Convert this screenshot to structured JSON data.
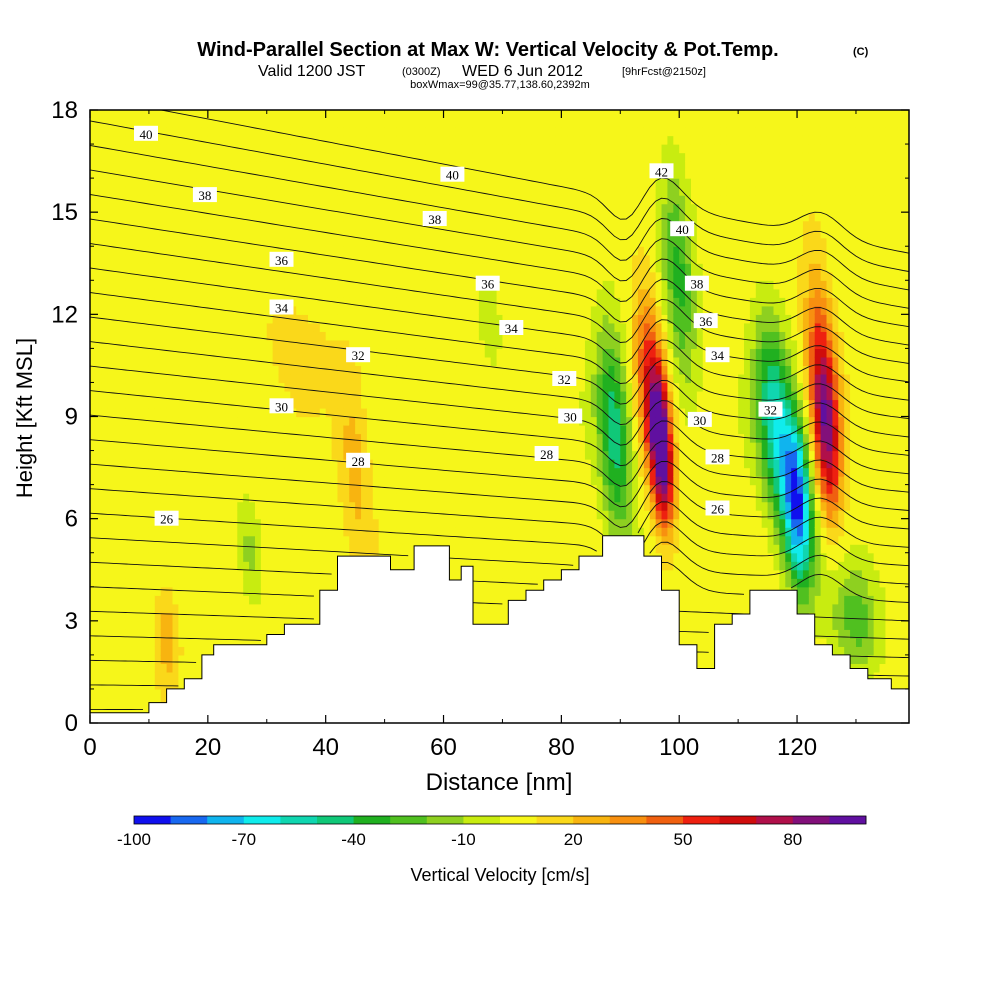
{
  "header": {
    "title": "Wind-Parallel Section at Max W: Vertical Velocity & Pot.Temp.",
    "title_mark": "(C)",
    "valid_prefix": "Valid 1200 JST",
    "valid_utc": "(0300Z)",
    "valid_date": "WED 6 Jun 2012",
    "forecast": "[9hrFcst@2150z]",
    "boxwmax": "boxWmax=99@35.77,138.60,2392m"
  },
  "chart_data": {
    "type": "heatmap",
    "xlabel": "Distance [nm]",
    "ylabel": "Height [Kft MSL]",
    "xlim": [
      0,
      139
    ],
    "ylim": [
      0,
      18
    ],
    "x_ticks": [
      "0",
      "20",
      "40",
      "60",
      "80",
      "100",
      "120"
    ],
    "y_ticks": [
      "0",
      "3",
      "6",
      "9",
      "12",
      "15",
      "18"
    ],
    "colorbar": {
      "label": "Vertical Velocity [cm/s]",
      "tick_labels": [
        "-100",
        "-70",
        "-40",
        "-10",
        "20",
        "50",
        "80"
      ],
      "colors": [
        "#1010ee",
        "#1868f0",
        "#10b4ee",
        "#10ecec",
        "#10d6b0",
        "#10c878",
        "#20b020",
        "#50c020",
        "#8ed020",
        "#c8ec10",
        "#f6f61a",
        "#fad81a",
        "#f8b410",
        "#f89010",
        "#f06010",
        "#ee2010",
        "#d00c0c",
        "#b0104a",
        "#82107a",
        "#6010a0"
      ],
      "min": -100,
      "max": 100
    },
    "terrain_profile": [
      [
        0,
        0.3
      ],
      [
        10,
        0.3
      ],
      [
        10,
        0.6
      ],
      [
        13,
        0.6
      ],
      [
        13,
        1.0
      ],
      [
        16,
        1.0
      ],
      [
        16,
        1.3
      ],
      [
        19,
        1.3
      ],
      [
        19,
        2.0
      ],
      [
        21,
        2.0
      ],
      [
        21,
        2.3
      ],
      [
        30,
        2.3
      ],
      [
        30,
        2.6
      ],
      [
        33,
        2.6
      ],
      [
        33,
        2.9
      ],
      [
        39,
        2.9
      ],
      [
        39,
        3.9
      ],
      [
        42,
        3.9
      ],
      [
        42,
        4.9
      ],
      [
        51,
        4.9
      ],
      [
        51,
        4.5
      ],
      [
        55,
        4.5
      ],
      [
        55,
        5.2
      ],
      [
        61,
        5.2
      ],
      [
        61,
        4.2
      ],
      [
        63,
        4.2
      ],
      [
        63,
        4.6
      ],
      [
        65,
        4.6
      ],
      [
        65,
        2.9
      ],
      [
        71,
        2.9
      ],
      [
        71,
        3.6
      ],
      [
        74,
        3.6
      ],
      [
        74,
        3.9
      ],
      [
        77,
        3.9
      ],
      [
        77,
        4.2
      ],
      [
        80,
        4.2
      ],
      [
        80,
        4.5
      ],
      [
        83,
        4.5
      ],
      [
        83,
        4.9
      ],
      [
        87,
        4.9
      ],
      [
        87,
        5.5
      ],
      [
        94,
        5.5
      ],
      [
        94,
        4.9
      ],
      [
        97,
        4.9
      ],
      [
        97,
        3.9
      ],
      [
        100,
        3.9
      ],
      [
        100,
        2.3
      ],
      [
        103,
        2.3
      ],
      [
        103,
        1.6
      ],
      [
        106,
        1.6
      ],
      [
        106,
        2.9
      ],
      [
        109,
        2.9
      ],
      [
        109,
        3.2
      ],
      [
        112,
        3.2
      ],
      [
        112,
        3.9
      ],
      [
        120,
        3.9
      ],
      [
        120,
        3.2
      ],
      [
        123,
        3.2
      ],
      [
        123,
        2.3
      ],
      [
        126,
        2.3
      ],
      [
        126,
        2.0
      ],
      [
        129,
        2.0
      ],
      [
        129,
        1.6
      ],
      [
        132,
        1.6
      ],
      [
        132,
        1.3
      ],
      [
        136,
        1.3
      ],
      [
        136,
        1.0
      ],
      [
        139,
        1.0
      ]
    ],
    "w_features": [
      {
        "x": 97,
        "z": 8.0,
        "rx": 1.8,
        "rz": 2.2,
        "w": 90
      },
      {
        "x": 95,
        "z": 10.0,
        "rx": 2.5,
        "rz": 3.0,
        "w": 45
      },
      {
        "x": 125,
        "z": 8.5,
        "rx": 2.2,
        "rz": 2.5,
        "w": 65
      },
      {
        "x": 124,
        "z": 11.0,
        "rx": 2.5,
        "rz": 3.0,
        "w": 35
      },
      {
        "x": 120,
        "z": 6.5,
        "rx": 2.5,
        "rz": 2.5,
        "w": -95
      },
      {
        "x": 116,
        "z": 9.0,
        "rx": 3.0,
        "rz": 3.0,
        "w": -55
      },
      {
        "x": 89,
        "z": 8.5,
        "rx": 2.8,
        "rz": 3.2,
        "w": -50
      },
      {
        "x": 100,
        "z": 13.0,
        "rx": 2.5,
        "rz": 3.5,
        "w": -35
      },
      {
        "x": 45,
        "z": 7.5,
        "rx": 2.5,
        "rz": 2.8,
        "w": 20
      },
      {
        "x": 13,
        "z": 2.5,
        "rx": 2.0,
        "rz": 1.5,
        "w": 22
      },
      {
        "x": 27,
        "z": 5.0,
        "rx": 2.0,
        "rz": 1.5,
        "w": -20
      },
      {
        "x": 130,
        "z": 3.0,
        "rx": 4.0,
        "rz": 1.5,
        "w": -30
      },
      {
        "x": 68,
        "z": 11.5,
        "rx": 1.5,
        "rz": 1.0,
        "w": -15
      },
      {
        "x": 35,
        "z": 11.5,
        "rx": 7.0,
        "rz": 1.8,
        "w": 8
      }
    ],
    "theta_labels": [
      {
        "text": "40",
        "x": 9.5,
        "y": 17.3
      },
      {
        "text": "38",
        "x": 19.5,
        "y": 15.5
      },
      {
        "text": "40",
        "x": 61.5,
        "y": 16.1
      },
      {
        "text": "38",
        "x": 58.5,
        "y": 14.8
      },
      {
        "text": "36",
        "x": 32.5,
        "y": 13.6
      },
      {
        "text": "36",
        "x": 67.5,
        "y": 12.9
      },
      {
        "text": "34",
        "x": 32.5,
        "y": 12.2
      },
      {
        "text": "34",
        "x": 71.5,
        "y": 11.6
      },
      {
        "text": "32",
        "x": 45.5,
        "y": 10.8
      },
      {
        "text": "32",
        "x": 80.5,
        "y": 10.1
      },
      {
        "text": "30",
        "x": 32.5,
        "y": 9.3
      },
      {
        "text": "30",
        "x": 81.5,
        "y": 9.0
      },
      {
        "text": "28",
        "x": 45.5,
        "y": 7.7
      },
      {
        "text": "28",
        "x": 77.5,
        "y": 7.9
      },
      {
        "text": "26",
        "x": 13.0,
        "y": 6.0
      },
      {
        "text": "42",
        "x": 97.0,
        "y": 16.2
      },
      {
        "text": "40",
        "x": 100.5,
        "y": 14.5
      },
      {
        "text": "38",
        "x": 103.0,
        "y": 12.9
      },
      {
        "text": "36",
        "x": 104.5,
        "y": 11.8
      },
      {
        "text": "34",
        "x": 106.5,
        "y": 10.8
      },
      {
        "text": "30",
        "x": 103.5,
        "y": 8.9
      },
      {
        "text": "28",
        "x": 106.5,
        "y": 7.8
      },
      {
        "text": "26",
        "x": 106.5,
        "y": 6.3
      },
      {
        "text": "32",
        "x": 115.5,
        "y": 9.2
      }
    ]
  }
}
